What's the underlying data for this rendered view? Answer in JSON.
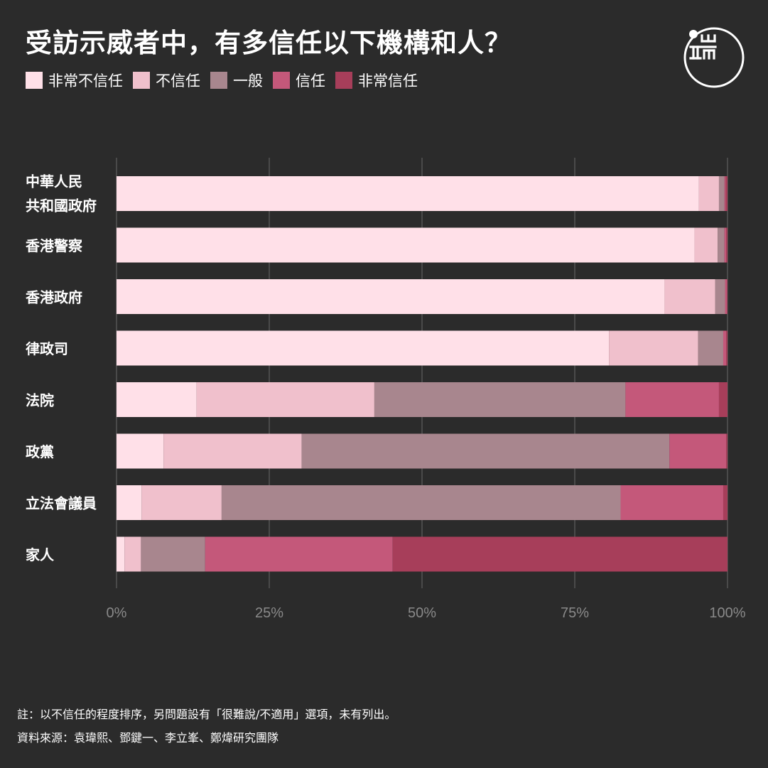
{
  "header": {
    "title": "受訪示威者中，有多信任以下機構和人？"
  },
  "footer": {
    "note": "註：以不信任的程度排序，另問題設有「很難說/不適用」選項，未有列出。",
    "source": "資料來源：袁瑋熙、鄧鍵一、李立峯、鄭煒研究團隊"
  },
  "chart_data": {
    "type": "bar",
    "orientation": "horizontal",
    "stacked": true,
    "title": "受訪示威者中，有多信任以下機構和人？",
    "categories": [
      [
        "中華人民",
        "共和國政府"
      ],
      [
        "香港警察"
      ],
      [
        "香港政府"
      ],
      [
        "律政司"
      ],
      [
        "法院"
      ],
      [
        "政黨"
      ],
      [
        "立法會議員"
      ],
      [
        "家人"
      ]
    ],
    "series": [
      {
        "name": "非常不信任",
        "color": "#ffe0e8",
        "values": [
          95.3,
          94.6,
          89.7,
          80.6,
          13.1,
          7.7,
          4.1,
          1.3
        ]
      },
      {
        "name": "不信任",
        "color": "#f0c0cc",
        "values": [
          3.3,
          3.8,
          8.3,
          14.6,
          29.1,
          22.6,
          13.1,
          2.7
        ]
      },
      {
        "name": "一般",
        "color": "#a8868e",
        "values": [
          0.9,
          1.1,
          1.6,
          4.1,
          41.1,
          60.2,
          65.3,
          10.5
        ]
      },
      {
        "name": "信任",
        "color": "#c4587a",
        "values": [
          0.2,
          0.3,
          0.3,
          0.5,
          15.3,
          9.3,
          16.8,
          30.7
        ]
      },
      {
        "name": "非常信任",
        "color": "#a73e5a",
        "values": [
          0.3,
          0.2,
          0.1,
          0.2,
          1.4,
          0.2,
          0.7,
          54.8
        ]
      }
    ],
    "xlim": [
      0,
      100
    ],
    "xticks": [
      "0%",
      "25%",
      "50%",
      "75%",
      "100%"
    ],
    "xlabel": "",
    "ylabel": "",
    "grid": true,
    "legend_position": "top-left"
  },
  "colors": {
    "background": "#2b2b2b",
    "gridline": "#6a6a6a",
    "tick_label": "#8a8a8a",
    "text": "#ffffff"
  },
  "logo": {
    "icon": "initium-logo-icon"
  }
}
